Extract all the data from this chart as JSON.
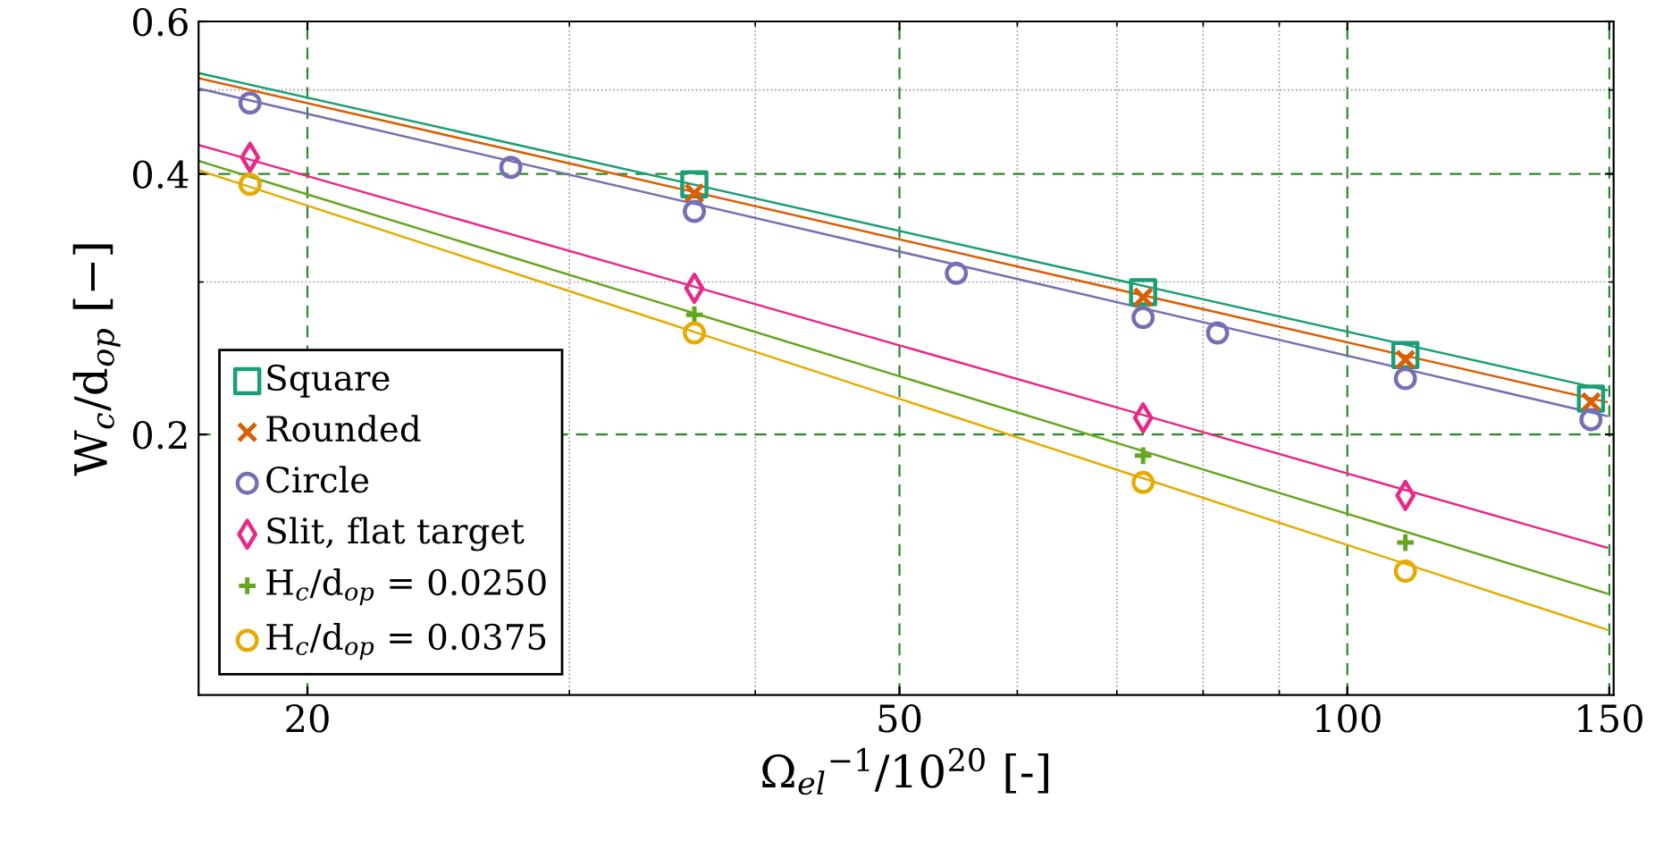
{
  "chart_data": {
    "type": "scatter",
    "xlabel": "Ω$_{el}$$^{−1}$/10$^{20}$ [-]",
    "ylabel": "W$_{c}$/d$_{op}$ [−]",
    "log": "xy",
    "xlim": [
      16.9,
      151
    ],
    "ylim": [
      0.1,
      0.6
    ],
    "xticks": [
      20,
      50,
      100,
      150
    ],
    "yticks": [
      0.2,
      0.4,
      0.6
    ],
    "grid": true,
    "legend": "bottom left",
    "series": [
      {
        "name": "Square",
        "color": "#1b9e77",
        "marker": "square",
        "x": [
          36.4,
          72.9,
          109.4,
          145.8
        ],
        "values": [
          0.389,
          0.292,
          0.247,
          0.22
        ]
      },
      {
        "name": "Rounded",
        "color": "#d95f02",
        "marker": "cross",
        "x": [
          36.4,
          72.9,
          109.4,
          145.8
        ],
        "values": [
          0.38,
          0.288,
          0.244,
          0.218
        ]
      },
      {
        "name": "Circle",
        "color": "#7570b3",
        "marker": "circle",
        "x": [
          18.3,
          27.4,
          36.4,
          54.6,
          72.9,
          81.8,
          109.4,
          145.8
        ],
        "values": [
          0.483,
          0.407,
          0.362,
          0.307,
          0.273,
          0.262,
          0.232,
          0.208
        ]
      },
      {
        "name": "Slit, flat target",
        "color": "#e7298a",
        "marker": "diamond",
        "x": [
          18.3,
          36.4,
          72.9,
          109.4
        ],
        "values": [
          0.418,
          0.295,
          0.209,
          0.17
        ]
      },
      {
        "name": "H$_{c}$/d$_{op}$ = 0.0250",
        "color": "#66a61e",
        "marker": "plus",
        "x": [
          36.4,
          72.9,
          109.4
        ],
        "values": [
          0.275,
          0.189,
          0.15
        ]
      },
      {
        "name": "H$_{c}$/d$_{op}$ = 0.0375",
        "color": "#e6ab02",
        "marker": "circle",
        "x": [
          18.3,
          36.4,
          72.9,
          109.4
        ],
        "values": [
          0.389,
          0.262,
          0.176,
          0.139
        ]
      },
      {
        "type": "line",
        "color": "#1b9e77",
        "x": [
          16.9,
          149.4
        ],
        "values": [
          0.523,
          0.225
        ]
      },
      {
        "type": "line",
        "color": "#d95f02",
        "x": [
          16.9,
          149.4
        ],
        "values": [
          0.516,
          0.218
        ]
      },
      {
        "type": "line",
        "color": "#7570b3",
        "x": [
          16.9,
          149.4
        ],
        "values": [
          0.502,
          0.21
        ]
      },
      {
        "type": "line",
        "color": "#e7298a",
        "x": [
          16.9,
          149.4
        ],
        "values": [
          0.432,
          0.148
        ]
      },
      {
        "type": "line",
        "color": "#66a61e",
        "x": [
          16.9,
          149.4
        ],
        "values": [
          0.414,
          0.131
        ]
      },
      {
        "type": "line",
        "color": "#e6ab02",
        "x": [
          16.9,
          149.4
        ],
        "values": [
          0.404,
          0.119
        ]
      }
    ]
  }
}
